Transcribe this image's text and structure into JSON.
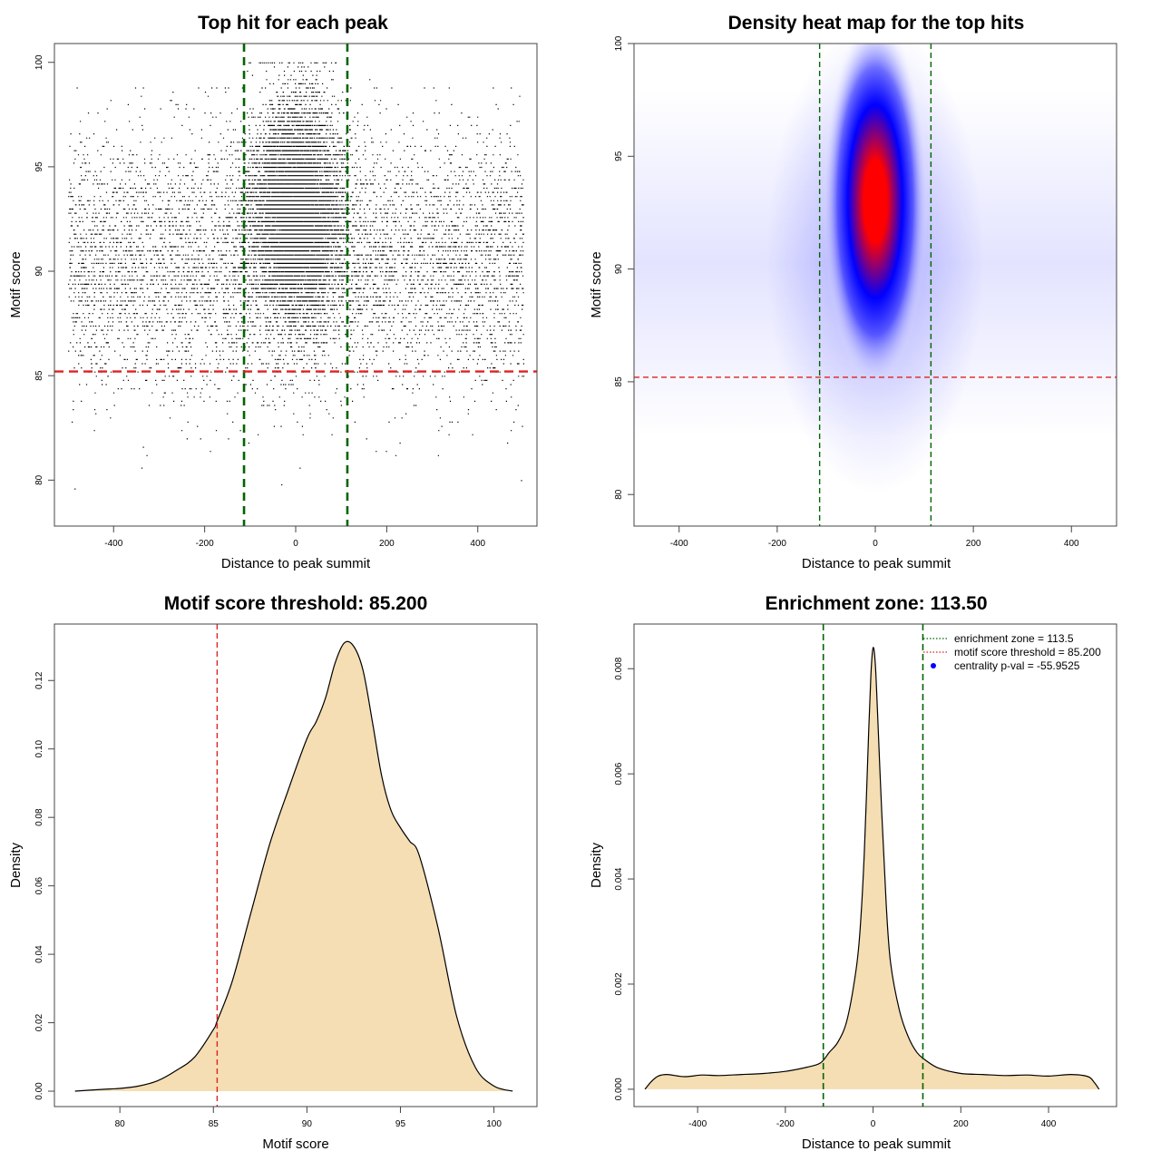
{
  "chart_data": [
    {
      "type": "scatter",
      "title": "Top hit for each peak",
      "xlabel": "Distance to peak summit",
      "ylabel": "Motif score",
      "xlim": [
        -530,
        530
      ],
      "ylim": [
        77.8,
        100.9
      ],
      "xticks": [
        -400,
        -200,
        0,
        200,
        400
      ],
      "xtick_labels": [
        "-400",
        "-200",
        "0",
        "200",
        "400"
      ],
      "yticks": [
        80,
        85,
        90,
        95,
        100
      ],
      "ytick_labels": [
        "80",
        "85",
        "90",
        "95",
        "100"
      ],
      "point_cloud": {
        "n_points": 15000,
        "x_range": [
          -500,
          500
        ],
        "y_range": [
          78.6,
          100
        ],
        "central_fraction": 0.58,
        "central_center": [
          0,
          93
        ],
        "background_center_y": 90.5
      },
      "vlines": [
        -113.5,
        113.5
      ],
      "hline": 85.2,
      "colors": {
        "points": "#000000",
        "vlines": "#006400",
        "hline": "#dd2222"
      }
    },
    {
      "type": "heatmap",
      "title": "Density heat map for the top hits",
      "xlabel": "Distance to peak summit",
      "ylabel": "Motif score",
      "xlim": [
        -492,
        492
      ],
      "ylim": [
        78.6,
        100
      ],
      "xticks": [
        -400,
        -200,
        0,
        200,
        400
      ],
      "xtick_labels": [
        "-400",
        "-200",
        "0",
        "200",
        "400"
      ],
      "yticks": [
        80,
        85,
        90,
        95,
        100
      ],
      "ytick_labels": [
        "80",
        "85",
        "90",
        "95",
        "100"
      ],
      "peak": {
        "x": 0,
        "y": 93
      },
      "vlines": [
        -113.5,
        113.5
      ],
      "hline": 85.2,
      "colors": {
        "low": "#ffffff",
        "mid": "#0000ff",
        "high": "#ff0000",
        "vlines": "#006400",
        "hline": "#dd2222"
      }
    },
    {
      "type": "area",
      "title": "Motif score threshold: 85.200",
      "xlabel": "Motif score",
      "ylabel": "Density",
      "xlim": [
        76.5,
        102.3
      ],
      "ylim": [
        -0.0045,
        0.1365
      ],
      "xticks": [
        80,
        85,
        90,
        95,
        100
      ],
      "xtick_labels": [
        "80",
        "85",
        "90",
        "95",
        "100"
      ],
      "yticks": [
        0,
        0.02,
        0.04,
        0.06,
        0.08,
        0.1,
        0.12
      ],
      "ytick_labels": [
        "0.00",
        "0.02",
        "0.04",
        "0.06",
        "0.08",
        "0.10",
        "0.12"
      ],
      "x": [
        77.6,
        79,
        80,
        81,
        82,
        83,
        84,
        85,
        85.2,
        86,
        87,
        88,
        89,
        90,
        90.5,
        91,
        91.5,
        92,
        92.5,
        93,
        93.5,
        94,
        94.5,
        95,
        95.5,
        96,
        97,
        98,
        99,
        100,
        101
      ],
      "y": [
        0.0,
        0.0005,
        0.0008,
        0.0015,
        0.003,
        0.006,
        0.01,
        0.018,
        0.0205,
        0.032,
        0.052,
        0.072,
        0.088,
        0.103,
        0.108,
        0.115,
        0.125,
        0.131,
        0.13,
        0.123,
        0.108,
        0.092,
        0.082,
        0.077,
        0.073,
        0.069,
        0.048,
        0.022,
        0.007,
        0.0015,
        0.0
      ],
      "vline": 85.2,
      "colors": {
        "fill": "#f5deb3",
        "line": "#000000",
        "vline": "#dd2222"
      }
    },
    {
      "type": "area",
      "title": "Enrichment zone: 113.50",
      "xlabel": "Distance to peak summit",
      "ylabel": "Density",
      "xlim": [
        -545,
        555
      ],
      "ylim": [
        -0.00033,
        0.00885
      ],
      "xticks": [
        -400,
        -200,
        0,
        200,
        400
      ],
      "xtick_labels": [
        "-400",
        "-200",
        "0",
        "200",
        "400"
      ],
      "yticks": [
        0,
        0.002,
        0.004,
        0.006,
        0.008
      ],
      "ytick_labels": [
        "0.000",
        "0.002",
        "0.004",
        "0.006",
        "0.008"
      ],
      "x": [
        -520,
        -505,
        -490,
        -470,
        -430,
        -390,
        -350,
        -300,
        -250,
        -200,
        -150,
        -120,
        -100,
        -80,
        -60,
        -40,
        -30,
        -20,
        -10,
        -5,
        0,
        5,
        10,
        20,
        30,
        40,
        60,
        80,
        100,
        120,
        150,
        200,
        250,
        300,
        350,
        400,
        450,
        490,
        505,
        515
      ],
      "y": [
        0.0,
        0.00015,
        0.00025,
        0.00028,
        0.00024,
        0.00027,
        0.00026,
        0.00028,
        0.0003,
        0.00034,
        0.00042,
        0.0005,
        0.0007,
        0.0009,
        0.0013,
        0.0022,
        0.003,
        0.0045,
        0.0068,
        0.0079,
        0.0084,
        0.0081,
        0.0072,
        0.0052,
        0.0035,
        0.0024,
        0.0015,
        0.001,
        0.0007,
        0.00055,
        0.0004,
        0.0003,
        0.00028,
        0.00026,
        0.00027,
        0.00025,
        0.00028,
        0.00024,
        0.00012,
        0.0
      ],
      "vlines": [
        -113.5,
        113.5
      ],
      "legend": {
        "placement": "top-right",
        "entries": [
          {
            "label": "enrichment zone = 113.5",
            "symbol": "dotted-line",
            "color": "#006400"
          },
          {
            "label": "motif score threshold = 85.200",
            "symbol": "dotted-line",
            "color": "#dd2222"
          },
          {
            "label": "centrality p-val = -55.9525",
            "symbol": "dot",
            "color": "#0000ff"
          }
        ]
      },
      "colors": {
        "fill": "#f5deb3",
        "line": "#000000",
        "vlines": "#006400"
      }
    }
  ]
}
